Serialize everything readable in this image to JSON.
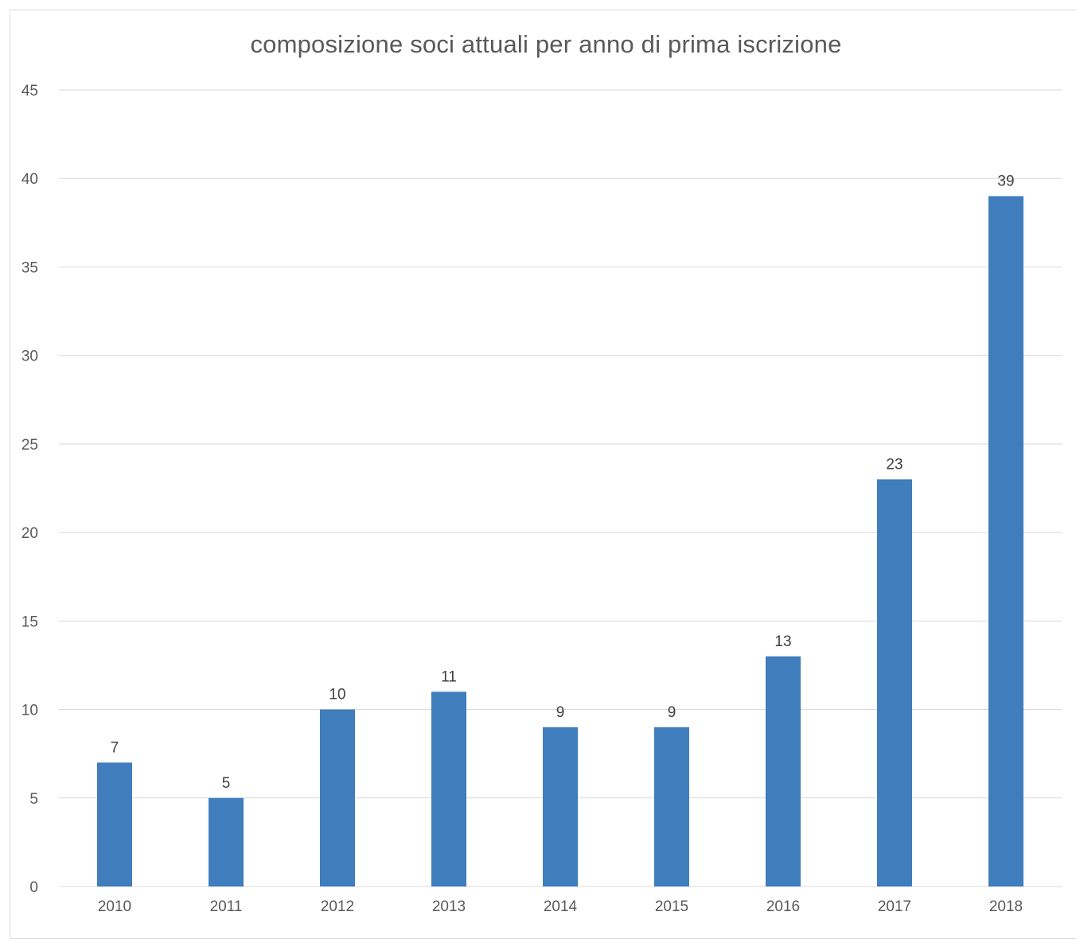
{
  "chart_data": {
    "type": "bar",
    "title": "composizione soci attuali per anno di prima iscrizione",
    "xlabel": "",
    "ylabel": "",
    "categories": [
      "2010",
      "2011",
      "2012",
      "2013",
      "2014",
      "2015",
      "2016",
      "2017",
      "2018"
    ],
    "values": [
      7,
      5,
      10,
      11,
      9,
      9,
      13,
      23,
      39
    ],
    "ylim": [
      0,
      45
    ],
    "yticks": [
      0,
      5,
      10,
      15,
      20,
      25,
      30,
      35,
      40,
      45
    ],
    "grid": true,
    "legend": "none",
    "data_labels": true,
    "colors": {
      "bar": "#3f7dbd",
      "grid": "#d9d9d9",
      "axis": "#d9d9d9",
      "text": "#595959"
    }
  }
}
